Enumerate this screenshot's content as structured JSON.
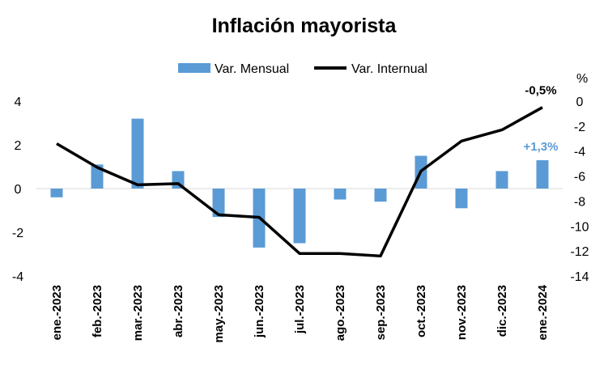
{
  "chart_data": {
    "type": "bar+line",
    "title": "Inflación mayorista",
    "categories": [
      "ene.-2023",
      "feb.-2023",
      "mar.-2023",
      "abr.-2023",
      "may.-2023",
      "jun.-2023",
      "jul.-2023",
      "ago.-2023",
      "sep.-2023",
      "oct.-2023",
      "nov.-2023",
      "dic.-2023",
      "ene.-2024"
    ],
    "series": [
      {
        "name": "Var. Mensual",
        "type": "bar",
        "axis": "left",
        "color": "#5B9BD5",
        "values": [
          -0.4,
          1.1,
          3.2,
          0.8,
          -1.3,
          -2.7,
          -2.5,
          -0.5,
          -0.6,
          1.5,
          -0.9,
          0.8,
          1.3
        ]
      },
      {
        "name": "Var. Internual",
        "type": "line",
        "axis": "right",
        "color": "#000000",
        "values": [
          -3.4,
          -5.3,
          -6.7,
          -6.6,
          -9.1,
          -9.3,
          -12.2,
          -12.2,
          -12.4,
          -5.6,
          -3.2,
          -2.3,
          -0.5
        ]
      }
    ],
    "left_axis": {
      "ylim": [
        -4,
        4
      ],
      "ticks": [
        "4",
        "2",
        "0",
        "-2",
        "-4"
      ],
      "tick_values": [
        4,
        2,
        0,
        -2,
        -4
      ]
    },
    "right_axis": {
      "label": "%",
      "ylim": [
        -14,
        0
      ],
      "ticks": [
        "0",
        "-2",
        "-4",
        "-6",
        "-8",
        "-10",
        "-12",
        "-14"
      ],
      "tick_values": [
        0,
        -2,
        -4,
        -6,
        -8,
        -10,
        -12,
        -14
      ]
    },
    "legend": {
      "position": "top",
      "items": [
        "Var. Mensual",
        "Var. Internual"
      ]
    },
    "annotations": [
      {
        "text": "-0,5%",
        "series": "Var. Internual",
        "index": 12,
        "color": "#000000"
      },
      {
        "text": "+1,3%",
        "series": "Var. Mensual",
        "index": 12,
        "color": "#5B9BD5"
      }
    ],
    "grid": false
  }
}
